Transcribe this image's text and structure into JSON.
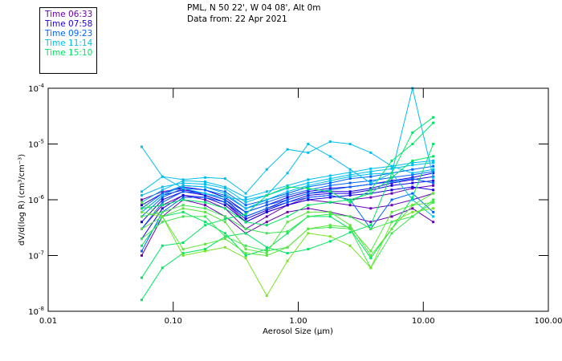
{
  "header": {
    "location": "PML, N 50 22', W 04 08', Alt 0m",
    "date": "Data from: 22 Apr 2021"
  },
  "legend": {
    "items": [
      {
        "label": "Time 06:33",
        "color": "#6a00b4"
      },
      {
        "label": "Time 07:58",
        "color": "#1a00e0"
      },
      {
        "label": "Time 09:23",
        "color": "#0064ff"
      },
      {
        "label": "Time 11:14",
        "color": "#00bef0"
      },
      {
        "label": "Time 15:10",
        "color": "#00e664"
      }
    ]
  },
  "chart_data": {
    "type": "line",
    "title": "PML, N 50 22', W 04 08', Alt 0m — Data from: 22 Apr 2021",
    "xlabel": "Aerosol Size (µm)",
    "ylabel": "dV/d(log R) (cm³/cm⁻³)",
    "xscale": "log",
    "yscale": "log",
    "xlim": [
      0.01,
      100
    ],
    "ylim": [
      1e-08,
      0.0001
    ],
    "xticks": [
      0.01,
      0.1,
      1,
      10,
      100
    ],
    "xtick_labels": [
      "0.01",
      "0.10",
      "1.00",
      "10.00",
      "100.00"
    ],
    "yticks": [
      1e-08,
      1e-07,
      1e-06,
      1e-05,
      0.0001
    ],
    "ytick_labels": [
      {
        "base": "10",
        "exp": "-8"
      },
      {
        "base": "10",
        "exp": "-7"
      },
      {
        "base": "10",
        "exp": "-6"
      },
      {
        "base": "10",
        "exp": "-5"
      },
      {
        "base": "10",
        "exp": "-4"
      }
    ],
    "grid": false,
    "legend_position": "top-left (outside)",
    "x": [
      0.056,
      0.082,
      0.12,
      0.18,
      0.26,
      0.38,
      0.56,
      0.82,
      1.2,
      1.8,
      2.6,
      3.8,
      5.6,
      8.2,
      12.0
    ],
    "series": [
      {
        "name": "06:33 a",
        "color": "#6a00b4",
        "values": [
          1e-06,
          1.4e-06,
          1.6e-06,
          1.2e-06,
          9e-07,
          4e-07,
          6e-07,
          8e-07,
          1e-06,
          9e-07,
          8e-07,
          7e-07,
          8e-07,
          1e-06,
          1.3e-06
        ]
      },
      {
        "name": "06:33 b",
        "color": "#6a00b4",
        "values": [
          1e-07,
          5e-07,
          1e-06,
          8e-07,
          5e-07,
          2.5e-07,
          4e-07,
          6e-07,
          7e-07,
          6e-07,
          5e-07,
          4e-07,
          5e-07,
          7e-07,
          4e-07
        ]
      },
      {
        "name": "06:33 c",
        "color": "#6a00b4",
        "values": [
          3e-07,
          8e-07,
          1.2e-06,
          1e-06,
          7e-07,
          3e-07,
          5e-07,
          8e-07,
          1.1e-06,
          1.2e-06,
          1e-06,
          1.1e-06,
          1.3e-06,
          1.6e-06,
          1.8e-06
        ]
      },
      {
        "name": "07:58 a",
        "color": "#1a00e0",
        "values": [
          6e-07,
          1.2e-06,
          1.5e-06,
          1.3e-06,
          1e-06,
          5e-07,
          7e-07,
          1e-06,
          1.3e-06,
          1.4e-06,
          1.4e-06,
          1.6e-06,
          2e-06,
          2.3e-06,
          2.6e-06
        ]
      },
      {
        "name": "07:58 b",
        "color": "#1a00e0",
        "values": [
          4e-07,
          1e-06,
          1.4e-06,
          1.2e-06,
          9e-07,
          4.5e-07,
          6.5e-07,
          9e-07,
          1.2e-06,
          1.3e-06,
          1.3e-06,
          1.5e-06,
          1.8e-06,
          2e-06,
          2.2e-06
        ]
      },
      {
        "name": "07:58 c",
        "color": "#1a00e0",
        "values": [
          8e-07,
          1.3e-06,
          1.7e-06,
          1.5e-06,
          1.1e-06,
          6e-07,
          8e-07,
          1.1e-06,
          1.4e-06,
          1.6e-06,
          1.7e-06,
          1.9e-06,
          2.2e-06,
          2.5e-06,
          3e-06
        ]
      },
      {
        "name": "07:58 d",
        "color": "#1a00e0",
        "values": [
          2e-07,
          7e-07,
          1.2e-06,
          1.1e-06,
          8e-07,
          4e-07,
          6e-07,
          8e-07,
          1e-06,
          1.1e-06,
          1.2e-06,
          1.3e-06,
          1.5e-06,
          1.7e-06,
          1.5e-06
        ]
      },
      {
        "name": "09:23 a",
        "color": "#0064ff",
        "values": [
          5e-07,
          1.1e-06,
          1.6e-06,
          1.5e-06,
          1.2e-06,
          7e-07,
          9e-07,
          1.2e-06,
          1.5e-06,
          1.8e-06,
          2e-06,
          2.2e-06,
          2.5e-06,
          2.8e-06,
          3.2e-06
        ]
      },
      {
        "name": "09:23 b",
        "color": "#0064ff",
        "values": [
          3e-07,
          9e-07,
          1.4e-06,
          1.3e-06,
          1e-06,
          6e-07,
          8e-07,
          1e-06,
          1.3e-06,
          1.5e-06,
          1.7e-06,
          1.9e-06,
          2.1e-06,
          2.4e-06,
          2e-06
        ]
      },
      {
        "name": "09:23 c",
        "color": "#0064ff",
        "values": [
          7e-07,
          1.3e-06,
          1.8e-06,
          1.7e-06,
          1.4e-06,
          8e-07,
          1e-06,
          1.3e-06,
          1.7e-06,
          2e-06,
          2.4e-06,
          2.6e-06,
          3e-06,
          3.5e-06,
          4e-06
        ]
      },
      {
        "name": "09:23 d",
        "color": "#0064ff",
        "values": [
          1.2e-07,
          6e-07,
          1.1e-06,
          1.1e-06,
          9e-07,
          5e-07,
          7e-07,
          9e-07,
          1.1e-06,
          1.2e-06,
          1e-06,
          3e-07,
          1e-06,
          1.3e-06,
          6e-07
        ]
      },
      {
        "name": "11:14 a",
        "color": "#00bef0",
        "values": [
          8.9e-06,
          2.6e-06,
          2.3e-06,
          2.5e-06,
          2.4e-06,
          1.3e-06,
          3.5e-06,
          8e-06,
          7e-06,
          1.1e-05,
          1e-05,
          7e-06,
          4e-06,
          3e-06,
          3.5e-06
        ]
      },
      {
        "name": "11:14 b",
        "color": "#00bef0",
        "values": [
          1.4e-06,
          2.6e-06,
          1.6e-06,
          1.3e-06,
          1.1e-06,
          1e-06,
          1.2e-06,
          3e-06,
          1e-05,
          6e-06,
          3.5e-06,
          2e-06,
          3e-06,
          0.0001,
          2.5e-06
        ]
      },
      {
        "name": "11:14 c",
        "color": "#00bef0",
        "values": [
          1.2e-06,
          1.7e-06,
          2e-06,
          1.9e-06,
          1.6e-06,
          9e-07,
          1.2e-06,
          1.6e-06,
          2e-06,
          2.4e-06,
          2.8e-06,
          3.2e-06,
          3.6e-06,
          4.2e-06,
          4.6e-06
        ]
      },
      {
        "name": "11:14 d",
        "color": "#00bef0",
        "values": [
          9e-07,
          1.5e-06,
          2.2e-06,
          2.1e-06,
          1.7e-06,
          1.1e-06,
          1.4e-06,
          1.8e-06,
          2.3e-06,
          2.7e-06,
          3.1e-06,
          3.6e-06,
          4e-06,
          4.6e-06,
          5e-06
        ]
      },
      {
        "name": "11:14 e",
        "color": "#00bef0",
        "values": [
          6e-07,
          1.2e-06,
          1.8e-06,
          1.7e-06,
          1.3e-06,
          7e-07,
          1e-06,
          1.4e-06,
          1.8e-06,
          2.2e-06,
          2.6e-06,
          2.9e-06,
          3e-06,
          1e-06,
          5e-07
        ]
      },
      {
        "name": "15:10 a",
        "color": "#00e664",
        "values": [
          1.6e-08,
          6e-08,
          1.1e-07,
          1.3e-07,
          2.2e-07,
          2.5e-07,
          1.4e-07,
          1.1e-07,
          1.3e-07,
          1.8e-07,
          2.6e-07,
          3.5e-07,
          3e-06,
          1.6e-05,
          3e-05
        ]
      },
      {
        "name": "15:10 b",
        "color": "#00e664",
        "values": [
          4e-08,
          1.5e-07,
          1.7e-07,
          3.5e-07,
          4.5e-07,
          5.5e-07,
          1.2e-06,
          1.7e-06,
          1.6e-06,
          1.4e-06,
          9e-07,
          1.5e-06,
          5e-06,
          1e-05,
          2.4e-05
        ]
      },
      {
        "name": "15:10 c",
        "color": "#00e664",
        "values": [
          1.5e-07,
          5e-07,
          6e-07,
          4e-07,
          2.5e-07,
          1e-07,
          1.3e-07,
          2.5e-07,
          5e-07,
          5e-07,
          3e-07,
          9e-08,
          3e-07,
          1.1e-06,
          1e-05
        ]
      },
      {
        "name": "15:10 d",
        "color": "#3ce650",
        "values": [
          2e-07,
          4e-07,
          5e-07,
          5e-07,
          2.2e-07,
          1.5e-07,
          1.2e-07,
          1.4e-07,
          3e-07,
          3.2e-07,
          3e-07,
          6e-08,
          2.5e-07,
          5e-07,
          1e-06
        ]
      },
      {
        "name": "15:10 e",
        "color": "#5ae63c",
        "values": [
          3e-07,
          5e-07,
          7e-07,
          6e-07,
          4e-07,
          1.3e-07,
          1.1e-07,
          4e-07,
          6e-07,
          6e-07,
          3.5e-07,
          1e-07,
          3e-07,
          8e-07,
          9e-07
        ]
      },
      {
        "name": "15:10 f",
        "color": "#78e628",
        "values": [
          6e-07,
          5e-07,
          1e-07,
          1.2e-07,
          1.4e-07,
          9e-08,
          1.9e-08,
          8e-08,
          2.5e-07,
          2.2e-07,
          1.5e-07,
          6e-08,
          4e-07,
          6e-07,
          7e-07
        ]
      },
      {
        "name": "15:10 g",
        "color": "#3ce650",
        "values": [
          5e-07,
          6e-07,
          8e-07,
          7e-07,
          5e-07,
          3e-07,
          2.5e-07,
          2.7e-07,
          5e-07,
          5.5e-07,
          5e-07,
          3e-07,
          4e-07,
          5e-07,
          9e-07
        ]
      },
      {
        "name": "15:10 h",
        "color": "#00e664",
        "values": [
          7e-07,
          8e-07,
          1e-06,
          9e-07,
          7e-07,
          4e-07,
          3.5e-07,
          5e-07,
          8e-07,
          9e-07,
          1e-06,
          1.3e-06,
          2.5e-06,
          5e-06,
          6e-06
        ]
      },
      {
        "name": "15:10 i",
        "color": "#5ae63c",
        "values": [
          9e-07,
          5e-07,
          1.3e-07,
          1.6e-07,
          2e-07,
          1.1e-07,
          1e-07,
          1.4e-07,
          3e-07,
          3.5e-07,
          3.2e-07,
          1.2e-07,
          6e-07,
          8e-07,
          1.3e-06
        ]
      }
    ]
  }
}
